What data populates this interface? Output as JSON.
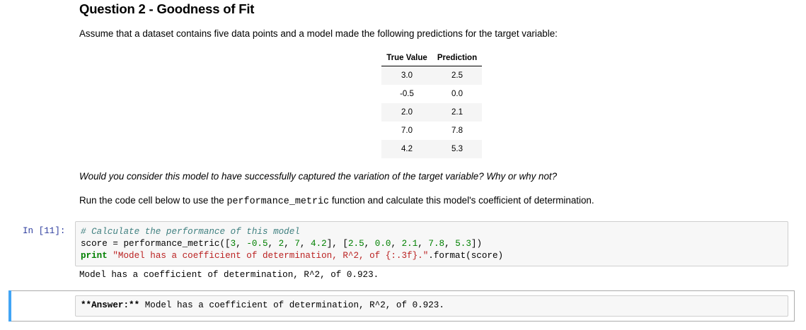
{
  "question": {
    "title": "Question 2 - Goodness of Fit",
    "intro": "Assume that a dataset contains five data points and a model made the following predictions for the target variable:",
    "table": {
      "headers": [
        "True Value",
        "Prediction"
      ],
      "rows": [
        [
          "3.0",
          "2.5"
        ],
        [
          "-0.5",
          "0.0"
        ],
        [
          "2.0",
          "2.1"
        ],
        [
          "7.0",
          "7.8"
        ],
        [
          "4.2",
          "5.3"
        ]
      ]
    },
    "italic_question": "Would you consider this model to have successfully captured the variation of the target variable? Why or why not?",
    "run_prefix": "Run the code cell below to use the ",
    "run_code": "performance_metric",
    "run_suffix": " function and calculate this model's coefficient of determination."
  },
  "code_cell": {
    "prompt": "In [11]:",
    "line1": "# Calculate the performance of this model",
    "line2_a": "score = performance_metric([",
    "line2_nums1": [
      "3",
      "-0.5",
      "2",
      "7",
      "4.2"
    ],
    "line2_nums2": [
      "2.5",
      "0.0",
      "2.1",
      "7.8",
      "5.3"
    ],
    "line3_kw": "print",
    "line3_str": "\"Model has a coefficient of determination, R^2, of {:.3f}.\"",
    "line3_tail": ".format(score)",
    "output": "Model has a coefficient of determination, R^2, of 0.923."
  },
  "answer_cell": {
    "label": "**Answer:**",
    "text": " Model has a coefficient of determination, R^2, of 0.923."
  },
  "colors": {
    "selected_bar": "#42a5f5",
    "prompt": "#303f9f"
  }
}
